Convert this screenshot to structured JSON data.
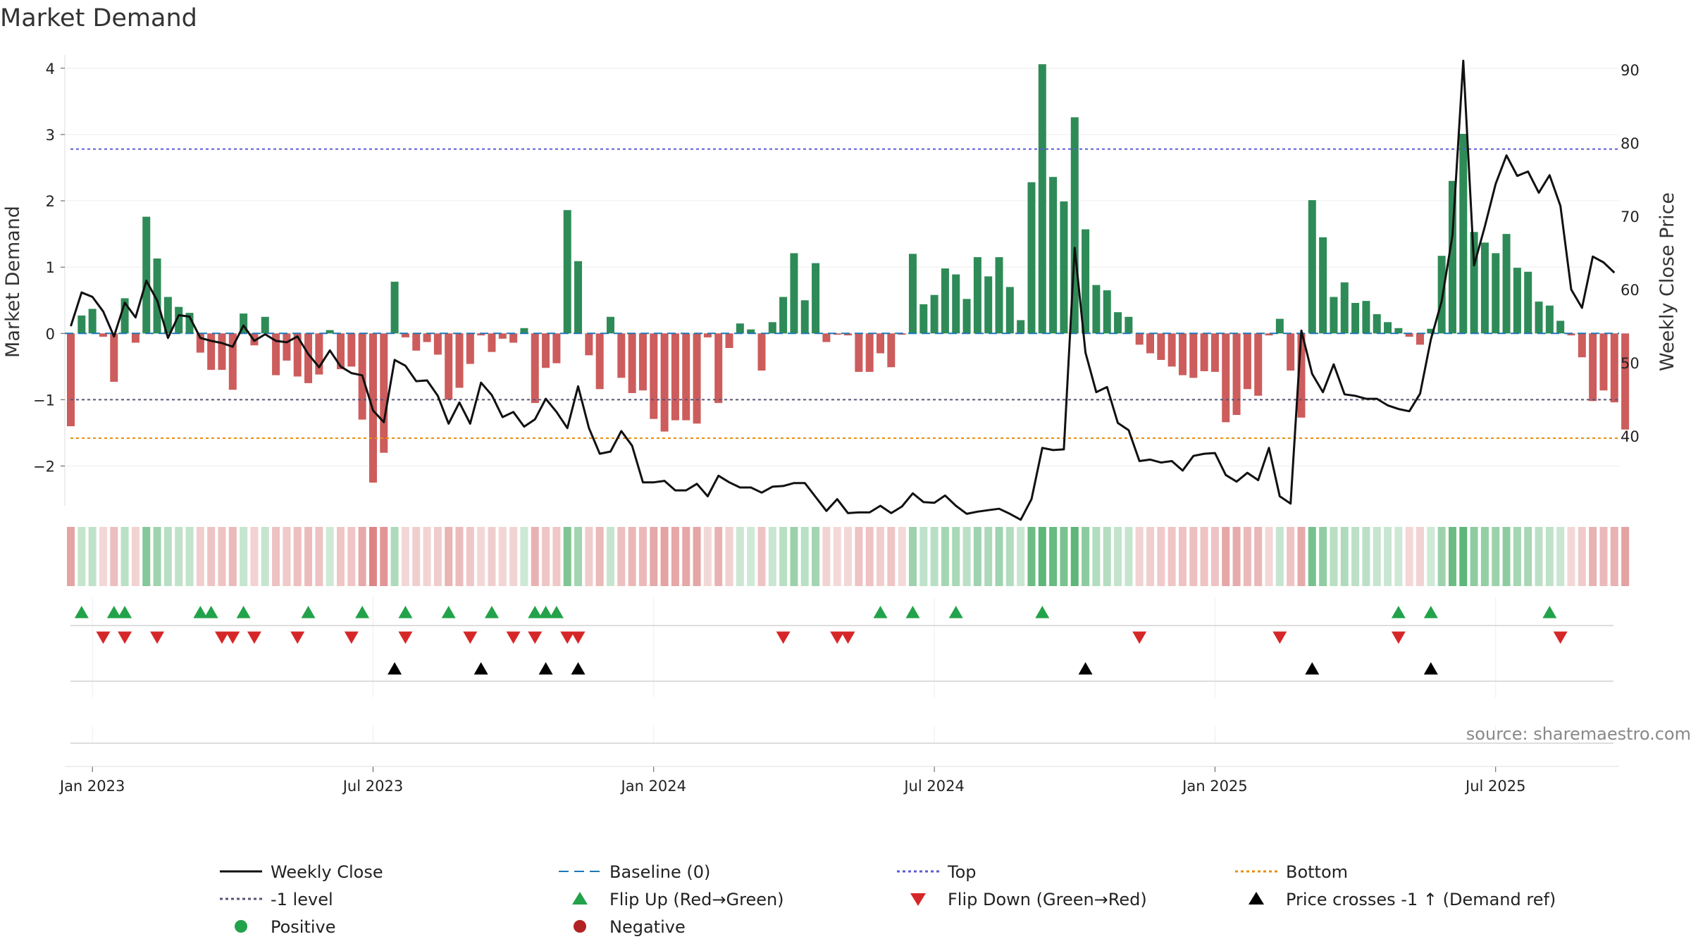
{
  "chart_data": {
    "type": "bar",
    "title": "Market Demand",
    "ylabel": "Market Demand",
    "y2label": "Weekly Close Price",
    "ylim": [
      -2.6,
      4.2
    ],
    "y2lim": [
      30.5,
      92
    ],
    "yticks": [
      "4",
      "3",
      "2",
      "1",
      "0",
      "−1",
      "−2"
    ],
    "y2ticks": [
      "90",
      "80",
      "70",
      "60",
      "50",
      "40"
    ],
    "xticks": [
      "Jan 2023",
      "Jul 2023",
      "Jan 2024",
      "Jul 2024",
      "Jan 2025",
      "Jul 2025"
    ],
    "x_start": "2022-12-19",
    "x_interval": "weekly",
    "levels": {
      "top": 2.78,
      "minus_one": -1.0,
      "bottom": -1.58,
      "baseline": 0
    },
    "series": [
      {
        "name": "Market Demand",
        "values": [
          -1.4,
          0.27,
          0.37,
          -0.05,
          -0.73,
          0.53,
          -0.14,
          1.76,
          1.13,
          0.55,
          0.4,
          0.31,
          -0.29,
          -0.55,
          -0.55,
          -0.85,
          0.3,
          -0.18,
          0.25,
          -0.63,
          -0.41,
          -0.65,
          -0.75,
          -0.62,
          0.05,
          -0.54,
          -0.5,
          -1.3,
          -2.25,
          -1.8,
          0.78,
          -0.06,
          -0.26,
          -0.13,
          -0.32,
          -1.0,
          -0.82,
          -0.46,
          -0.03,
          -0.28,
          -0.08,
          -0.14,
          0.08,
          -1.05,
          -0.52,
          -0.45,
          1.86,
          1.09,
          -0.33,
          -0.84,
          0.25,
          -0.67,
          -0.9,
          -0.86,
          -1.29,
          -1.48,
          -1.31,
          -1.31,
          -1.36,
          -0.06,
          -1.05,
          -0.22,
          0.15,
          0.06,
          -0.56,
          0.17,
          0.55,
          1.21,
          0.5,
          1.06,
          -0.13,
          -0.02,
          -0.03,
          -0.58,
          -0.58,
          -0.3,
          -0.51,
          -0.02,
          1.2,
          0.44,
          0.58,
          0.98,
          0.89,
          0.52,
          1.15,
          0.86,
          1.15,
          0.7,
          0.2,
          2.28,
          4.06,
          2.36,
          1.99,
          3.26,
          1.57,
          0.73,
          0.65,
          0.32,
          0.25,
          -0.17,
          -0.3,
          -0.4,
          -0.5,
          -0.63,
          -0.67,
          -0.57,
          -0.58,
          -1.34,
          -1.23,
          -0.84,
          -0.94,
          -0.03,
          0.22,
          -0.56,
          -1.27,
          2.01,
          1.45,
          0.55,
          0.77,
          0.46,
          0.49,
          0.29,
          0.17,
          0.08,
          -0.05,
          -0.17,
          0.07,
          1.17,
          2.3,
          3.01,
          1.53,
          1.37,
          1.21,
          1.5,
          0.99,
          0.93,
          0.48,
          0.42,
          0.19,
          -0.03,
          -0.36,
          -1.02,
          -0.86,
          -1.04,
          -1.45
        ]
      },
      {
        "name": "Weekly Close",
        "values": [
          55,
          59.6,
          59,
          57,
          53.6,
          58.2,
          56.2,
          61.2,
          58.5,
          53.4,
          56.5,
          56.3,
          53.4,
          53,
          52.7,
          52.2,
          55.1,
          53,
          53.9,
          53,
          52.8,
          53.6,
          51.2,
          49.4,
          51.7,
          49.5,
          48.6,
          48.3,
          43.5,
          41.9,
          50.4,
          49.6,
          47.5,
          47.6,
          45.5,
          41.7,
          44.6,
          41.7,
          47.3,
          45.6,
          42.6,
          43.3,
          41.3,
          42.3,
          45.1,
          43.3,
          41.1,
          46.8,
          41.1,
          37.6,
          37.9,
          40.7,
          38.7,
          33.7,
          33.7,
          33.9,
          32.6,
          32.6,
          33.5,
          31.8,
          34.6,
          33.7,
          33,
          33,
          32.3,
          33.1,
          33.2,
          33.6,
          33.6,
          31.7,
          29.8,
          31.4,
          29.5,
          29.6,
          29.6,
          30.5,
          29.5,
          30.4,
          32.2,
          31,
          30.9,
          31.9,
          30.5,
          29.4,
          29.7,
          29.9,
          30.1,
          29.4,
          28.6,
          31.4,
          38.4,
          38.1,
          38.2,
          65.7,
          51.4,
          46,
          46.7,
          41.8,
          40.8,
          36.6,
          36.8,
          36.4,
          36.6,
          35.3,
          37.3,
          37.6,
          37.7,
          34.7,
          33.8,
          35,
          34,
          38.4,
          31.8,
          30.8,
          54.4,
          48.5,
          46,
          49.8,
          45.7,
          45.5,
          45.1,
          45.1,
          44.2,
          43.7,
          43.4,
          45.8,
          53.2,
          58.4,
          67.4,
          91.2,
          63.3,
          68.6,
          74.4,
          78.3,
          75.5,
          76.1,
          73.2,
          75.6,
          71.4,
          60,
          57.5,
          64.5,
          63.7,
          62.3
        ]
      }
    ],
    "flip_up_weeks": [
      1,
      4,
      5,
      12,
      13,
      16,
      22,
      27,
      31,
      35,
      39,
      43,
      44,
      45,
      75,
      78,
      82,
      90,
      123,
      126,
      137
    ],
    "flip_down_weeks": [
      3,
      5,
      8,
      14,
      15,
      17,
      21,
      26,
      31,
      37,
      41,
      43,
      46,
      47,
      66,
      71,
      72,
      99,
      112,
      123,
      138
    ],
    "cross_weeks": [
      30,
      38,
      44,
      47,
      94,
      115,
      126
    ],
    "legend": [
      {
        "label": "Weekly Close",
        "kind": "line",
        "color": "#111111"
      },
      {
        "label": "Baseline (0)",
        "kind": "dash",
        "color": "#1f77b4"
      },
      {
        "label": "Top",
        "kind": "dot",
        "color": "#5b5bd6"
      },
      {
        "label": "Bottom",
        "kind": "dot",
        "color": "#e8900c"
      },
      {
        "label": "-1 level",
        "kind": "dot",
        "color": "#555577"
      },
      {
        "label": "Flip Up (Red→Green)",
        "kind": "tri-up",
        "color": "#22a24a"
      },
      {
        "label": "Flip Down (Green→Red)",
        "kind": "tri-down",
        "color": "#d62728"
      },
      {
        "label": "Price crosses -1 ↑ (Demand ref)",
        "kind": "tri-up",
        "color": "#000000"
      },
      {
        "label": "Positive",
        "kind": "dot-marker",
        "color": "#22a24a"
      },
      {
        "label": "Negative",
        "kind": "dot-marker",
        "color": "#b22222"
      }
    ],
    "source": "source: sharemaestro.com"
  },
  "colors": {
    "positive": "#2e8b57",
    "negative": "#cd5c5c",
    "price": "#111111"
  }
}
